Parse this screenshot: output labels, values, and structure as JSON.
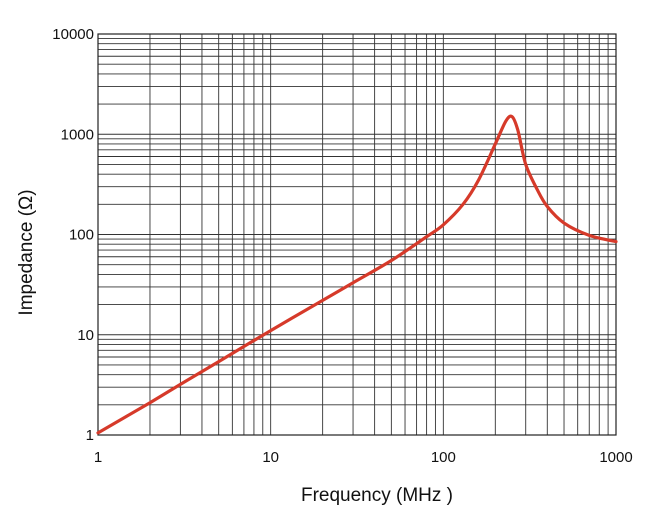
{
  "chart_data": {
    "type": "line",
    "xlabel": "Frequency (MHz )",
    "ylabel": "Impedance (Ω)",
    "x_scale": "log",
    "y_scale": "log",
    "xlim": [
      1,
      1000
    ],
    "ylim": [
      1,
      10000
    ],
    "grid": true,
    "x_tick_labels": [
      "1",
      "10",
      "100",
      "1000"
    ],
    "y_tick_labels": [
      "1",
      "10",
      "100",
      "1000",
      "10000"
    ],
    "series": [
      {
        "color": "#d63a2a",
        "x": [
          1,
          2,
          3,
          5,
          10,
          20,
          30,
          50,
          80,
          100,
          130,
          160,
          200,
          230,
          250,
          270,
          300,
          350,
          400,
          500,
          700,
          1000
        ],
        "y": [
          1.05,
          2.1,
          3.2,
          5.4,
          11,
          22,
          33,
          55,
          95,
          125,
          200,
          350,
          800,
          1350,
          1500,
          1100,
          500,
          280,
          190,
          130,
          98,
          85
        ]
      }
    ]
  }
}
